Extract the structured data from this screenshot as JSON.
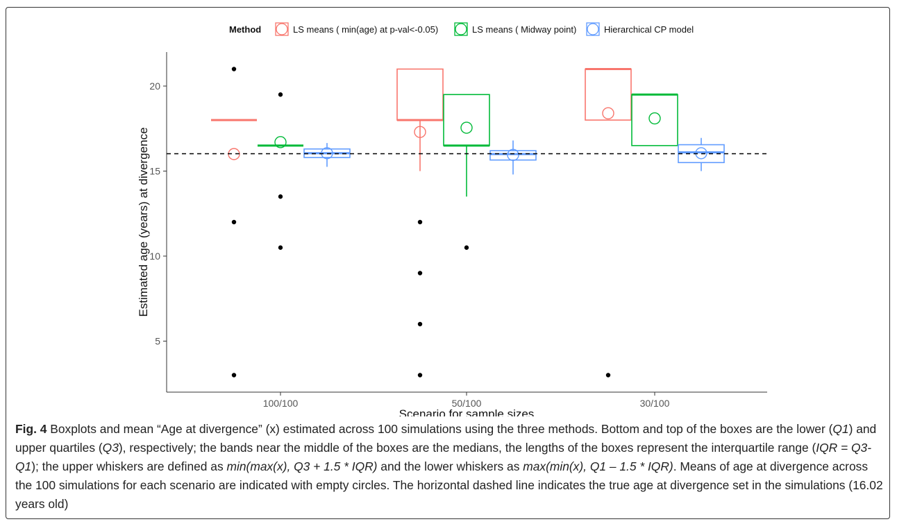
{
  "chart_data": {
    "type": "boxplot",
    "xlabel": "Scenario for sample sizes",
    "ylabel": "Estimated age (years) at divergence",
    "ylim": [
      2,
      22
    ],
    "yticks": [
      5,
      10,
      15,
      20
    ],
    "categories": [
      "100/100",
      "50/100",
      "30/100"
    ],
    "legend": {
      "title": "Method",
      "position": "top"
    },
    "reference_line": {
      "y": 16.02,
      "style": "dashed"
    },
    "grid": false,
    "series": [
      {
        "name": "LS means ( min(age) at p-val<-0.05)",
        "color": "#F8766D",
        "boxes": [
          {
            "q1": 18,
            "median": 18,
            "q3": 18,
            "whisker_low": 18,
            "whisker_high": 18,
            "mean": 16.0,
            "outliers": [
              21,
              12,
              3
            ]
          },
          {
            "q1": 18,
            "median": 18,
            "q3": 21,
            "whisker_low": 15,
            "whisker_high": 21,
            "mean": 17.3,
            "outliers": [
              12,
              9,
              6,
              3
            ]
          },
          {
            "q1": 18,
            "median": 21,
            "q3": 21,
            "whisker_low": 18,
            "whisker_high": 21,
            "mean": 18.4,
            "outliers": [
              3
            ]
          }
        ]
      },
      {
        "name": "LS means ( Midway point)",
        "color": "#00BA38",
        "boxes": [
          {
            "q1": 16.5,
            "median": 16.5,
            "q3": 16.5,
            "whisker_low": 16.5,
            "whisker_high": 16.5,
            "mean": 16.7,
            "outliers": [
              19.5,
              13.5,
              10.5
            ]
          },
          {
            "q1": 16.5,
            "median": 16.5,
            "q3": 19.5,
            "whisker_low": 13.5,
            "whisker_high": 19.5,
            "mean": 17.55,
            "outliers": [
              10.5
            ]
          },
          {
            "q1": 16.5,
            "median": 19.5,
            "q3": 19.5,
            "whisker_low": 16.5,
            "whisker_high": 19.5,
            "mean": 18.1,
            "outliers": []
          }
        ]
      },
      {
        "name": "Hierarchical CP model",
        "color": "#619CFF",
        "boxes": [
          {
            "q1": 15.8,
            "median": 16.05,
            "q3": 16.3,
            "whisker_low": 15.25,
            "whisker_high": 16.65,
            "mean": 16.05,
            "outliers": []
          },
          {
            "q1": 15.65,
            "median": 16.0,
            "q3": 16.2,
            "whisker_low": 14.8,
            "whisker_high": 16.8,
            "mean": 15.95,
            "outliers": []
          },
          {
            "q1": 15.5,
            "median": 16.1,
            "q3": 16.55,
            "whisker_low": 15.0,
            "whisker_high": 16.95,
            "mean": 16.05,
            "outliers": []
          }
        ]
      }
    ]
  },
  "caption": {
    "fig_label": "Fig. 4",
    "segments": [
      {
        "t": " Boxplots and mean “Age at divergence” (x) estimated across 100 simulations using the three methods. Bottom and top of the boxes are the lower (",
        "i": false
      },
      {
        "t": "Q1",
        "i": true
      },
      {
        "t": ") and upper quartiles (",
        "i": false
      },
      {
        "t": "Q3",
        "i": true
      },
      {
        "t": "), respectively; the bands near the middle of the boxes are the medians, the lengths of the boxes represent the interquartile range (",
        "i": false
      },
      {
        "t": "IQR = Q3-Q1",
        "i": true
      },
      {
        "t": "); the upper whiskers are defined as ",
        "i": false
      },
      {
        "t": "min(max(x), Q3 + 1.5 * IQR)",
        "i": true
      },
      {
        "t": " and the lower whiskers as ",
        "i": false
      },
      {
        "t": "max(min(x), Q1 – 1.5 * IQR)",
        "i": true
      },
      {
        "t": ". Means of age at divergence across the 100 simulations for each scenario are indicated with empty circles. The horizontal dashed line indicates the true age at divergence set in the simulations (16.02 years old)",
        "i": false
      }
    ]
  }
}
